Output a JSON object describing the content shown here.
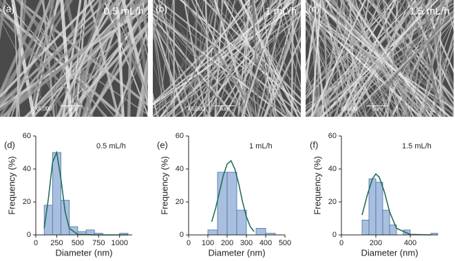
{
  "images": [
    {
      "panel": "(a)",
      "label": "0.5 mL/h",
      "magnification": "X5,000",
      "scale": "5um"
    },
    {
      "panel": "(b)",
      "label": "1 mL/h",
      "magnification": "X5,000",
      "scale": "5um"
    },
    {
      "panel": "(c)",
      "label": "1.5 mL/h",
      "magnification": "X5,000",
      "scale": "5um"
    }
  ],
  "chart_data": [
    {
      "type": "histogram",
      "panel": "(d)",
      "annotation": "0.5 mL/h",
      "x_label": "Diameter (nm)",
      "y_label": "Frequency (%)",
      "bins": [
        100,
        200,
        300,
        400,
        500,
        600,
        700,
        800,
        900,
        1000,
        1100
      ],
      "values": [
        18,
        50,
        21,
        5,
        2,
        3,
        1,
        0,
        0,
        1
      ],
      "color": "#a9bfdf",
      "edge_color": "#4a6fa5",
      "fit": {
        "x": [
          100,
          150,
          200,
          250,
          300,
          350,
          400,
          500,
          700,
          1100
        ],
        "values": [
          4,
          22,
          44,
          50,
          34,
          14,
          4,
          0.3,
          0,
          0
        ],
        "color": "#1f6e5a"
      },
      "xlim": [
        0,
        1150
      ],
      "ylim": [
        0,
        60
      ],
      "xticks": [
        0,
        250,
        500,
        750,
        1000
      ],
      "yticks": [
        0,
        20,
        40,
        60
      ]
    },
    {
      "type": "histogram",
      "panel": "(e)",
      "annotation": "1 mL/h",
      "x_label": "Diameter (nm)",
      "y_label": "Frequency (%)",
      "bins": [
        100,
        150,
        200,
        250,
        300,
        350,
        400,
        450
      ],
      "values": [
        3,
        38,
        38,
        15,
        0,
        4,
        1
      ],
      "color": "#a9bfdf",
      "edge_color": "#4a6fa5",
      "fit": {
        "x": [
          120,
          140,
          160,
          180,
          200,
          220,
          240,
          260,
          280,
          300,
          320,
          340
        ],
        "values": [
          8,
          16,
          26,
          36,
          43,
          45,
          40,
          31,
          20,
          11,
          5,
          2
        ],
        "color": "#1f6e5a"
      },
      "xlim": [
        0,
        500
      ],
      "ylim": [
        0,
        60
      ],
      "xticks": [
        0,
        100,
        200,
        300,
        400,
        500
      ],
      "yticks": [
        0,
        20,
        40,
        60
      ]
    },
    {
      "type": "histogram",
      "panel": "(f)",
      "annotation": "1.5 mL/h",
      "x_label": "Diameter (nm)",
      "y_label": "Frequency (%)",
      "bins": [
        120,
        160,
        200,
        240,
        280,
        320,
        360,
        400,
        440,
        480,
        520,
        560
      ],
      "values": [
        9,
        34,
        32,
        15,
        6,
        0,
        3,
        0,
        0,
        0,
        1
      ],
      "color": "#a9bfdf",
      "edge_color": "#4a6fa5",
      "fit": {
        "x": [
          120,
          150,
          180,
          200,
          220,
          250,
          280,
          320,
          400,
          520
        ],
        "values": [
          12,
          24,
          34,
          37,
          35,
          26,
          14,
          4,
          0.3,
          0
        ],
        "color": "#1f6e5a"
      },
      "xlim": [
        0,
        560
      ],
      "ylim": [
        0,
        60
      ],
      "xticks": [
        0,
        200,
        400
      ],
      "yticks": [
        0,
        20,
        40,
        60
      ]
    }
  ]
}
